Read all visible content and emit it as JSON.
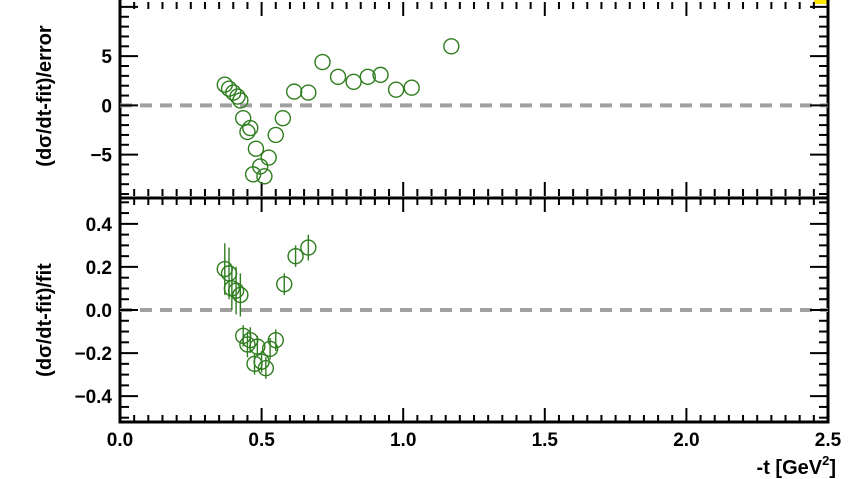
{
  "chart_data": [
    {
      "type": "scatter",
      "panel": "top",
      "ylabel": "(dσ/dt-fit)/error",
      "xlim": [
        0.0,
        2.5
      ],
      "ylim": [
        -9.2,
        10.5
      ],
      "yticks_labeled": [
        5,
        0,
        -5
      ],
      "ytick_labels": [
        "5",
        "0",
        "−5"
      ],
      "reference_line": 0,
      "marker": "open-circle",
      "marker_color": "#2e7d1e",
      "reference_line_color": "#a0a0a0",
      "points": [
        {
          "x": 0.37,
          "y": 2.1
        },
        {
          "x": 0.385,
          "y": 1.7
        },
        {
          "x": 0.4,
          "y": 1.3
        },
        {
          "x": 0.415,
          "y": 0.9
        },
        {
          "x": 0.425,
          "y": 0.5
        },
        {
          "x": 0.435,
          "y": -1.3
        },
        {
          "x": 0.45,
          "y": -2.7
        },
        {
          "x": 0.46,
          "y": -2.3
        },
        {
          "x": 0.47,
          "y": -7.0
        },
        {
          "x": 0.48,
          "y": -4.4
        },
        {
          "x": 0.495,
          "y": -6.2
        },
        {
          "x": 0.51,
          "y": -7.2
        },
        {
          "x": 0.525,
          "y": -5.3
        },
        {
          "x": 0.55,
          "y": -3.0
        },
        {
          "x": 0.575,
          "y": -1.3
        },
        {
          "x": 0.615,
          "y": 1.4
        },
        {
          "x": 0.665,
          "y": 1.3
        },
        {
          "x": 0.715,
          "y": 4.4
        },
        {
          "x": 0.77,
          "y": 2.9
        },
        {
          "x": 0.825,
          "y": 2.4
        },
        {
          "x": 0.875,
          "y": 2.9
        },
        {
          "x": 0.92,
          "y": 3.1
        },
        {
          "x": 0.975,
          "y": 1.6
        },
        {
          "x": 1.03,
          "y": 1.8
        },
        {
          "x": 1.17,
          "y": 6.0
        }
      ]
    },
    {
      "type": "scatter",
      "panel": "bottom",
      "xlabel": "-t [GeV²]",
      "xlabel_base": "-t [GeV",
      "xlabel_sup": "2",
      "xlabel_close": "]",
      "ylabel": "(dσ/dt-fit)/fit",
      "xlim": [
        0.0,
        2.5
      ],
      "ylim": [
        -0.52,
        0.52
      ],
      "xticks_labeled": [
        0.0,
        0.5,
        1.0,
        1.5,
        2.0,
        2.5
      ],
      "xtick_labels": [
        "0.0",
        "0.5",
        "1.0",
        "1.5",
        "2.0",
        "2.5"
      ],
      "yticks_labeled": [
        0.4,
        0.2,
        0.0,
        -0.2,
        -0.4
      ],
      "ytick_labels": [
        "0.4",
        "0.2",
        "0.0",
        "−0.2",
        "−0.4"
      ],
      "reference_line": 0,
      "marker": "open-circle-with-error-bar",
      "marker_color": "#2e7d1e",
      "reference_line_color": "#a0a0a0",
      "points": [
        {
          "x": 0.37,
          "y": 0.19,
          "err": 0.12
        },
        {
          "x": 0.385,
          "y": 0.17,
          "err": 0.12
        },
        {
          "x": 0.395,
          "y": 0.1,
          "err": 0.1
        },
        {
          "x": 0.41,
          "y": 0.09,
          "err": 0.11
        },
        {
          "x": 0.425,
          "y": 0.07,
          "err": 0.1
        },
        {
          "x": 0.435,
          "y": -0.12,
          "err": 0.05
        },
        {
          "x": 0.45,
          "y": -0.16,
          "err": 0.06
        },
        {
          "x": 0.46,
          "y": -0.14,
          "err": 0.06
        },
        {
          "x": 0.475,
          "y": -0.25,
          "err": 0.05
        },
        {
          "x": 0.485,
          "y": -0.17,
          "err": 0.05
        },
        {
          "x": 0.5,
          "y": -0.24,
          "err": 0.05
        },
        {
          "x": 0.515,
          "y": -0.27,
          "err": 0.05
        },
        {
          "x": 0.53,
          "y": -0.18,
          "err": 0.05
        },
        {
          "x": 0.55,
          "y": -0.14,
          "err": 0.05
        },
        {
          "x": 0.58,
          "y": 0.12,
          "err": 0.05
        },
        {
          "x": 0.62,
          "y": 0.25,
          "err": 0.05
        },
        {
          "x": 0.665,
          "y": 0.29,
          "err": 0.06
        }
      ]
    }
  ]
}
